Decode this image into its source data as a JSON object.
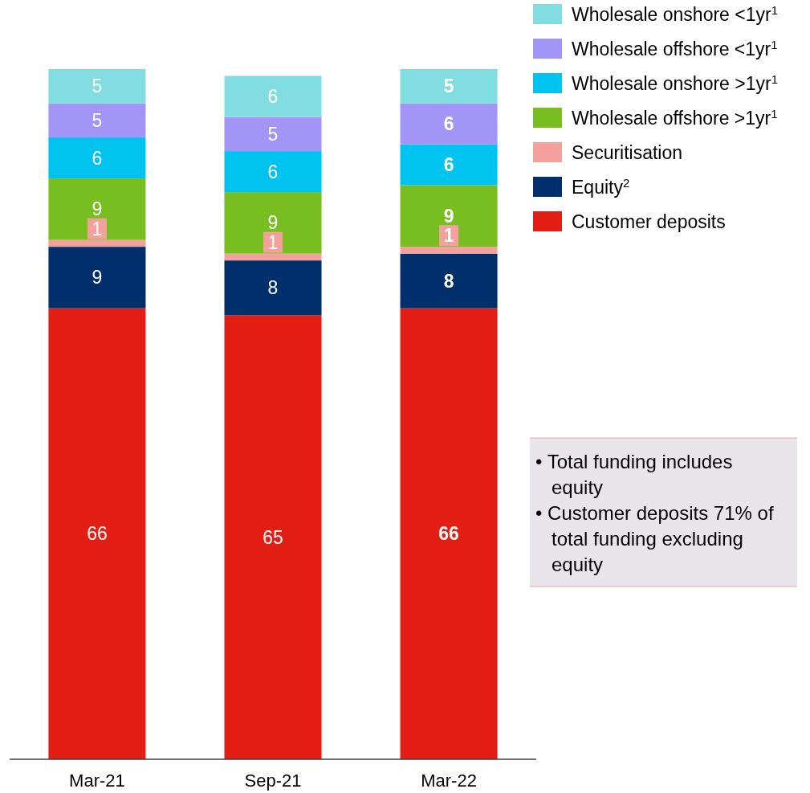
{
  "chart_data": {
    "type": "bar",
    "stacked": true,
    "relative": false,
    "data_labels": true,
    "legend": "top right",
    "categories": [
      "Mar-21",
      "Sep-21",
      "Mar-22"
    ],
    "series": [
      {
        "name": "Customer deposits",
        "color": "#e31e14",
        "values": [
          66,
          65,
          66
        ]
      },
      {
        "name": "Equity$^{2}$",
        "color": "#002f6c",
        "values": [
          9,
          8,
          8
        ]
      },
      {
        "name": "Securitisation",
        "color": "#f4a09c",
        "values": [
          1,
          1,
          1
        ]
      },
      {
        "name": "Wholesale offshore >1yr$^{1}$",
        "color": "#78be20",
        "values": [
          9,
          9,
          9
        ]
      },
      {
        "name": "Wholesale onshore >1yr$^{1}$",
        "color": "#00c3f0",
        "values": [
          6,
          6,
          6
        ]
      },
      {
        "name": "Wholesale offshore <1yr$^{1}$",
        "color": "#a395f5",
        "values": [
          5,
          5,
          6
        ]
      },
      {
        "name": "Wholesale onshore <1yr$^{1}$",
        "color": "#82dde0",
        "values": [
          5,
          6,
          5
        ]
      }
    ],
    "annotations": [
      "• Total funding includes equity",
      "• Customer deposits 71% of total funding excluding equity"
    ]
  }
}
